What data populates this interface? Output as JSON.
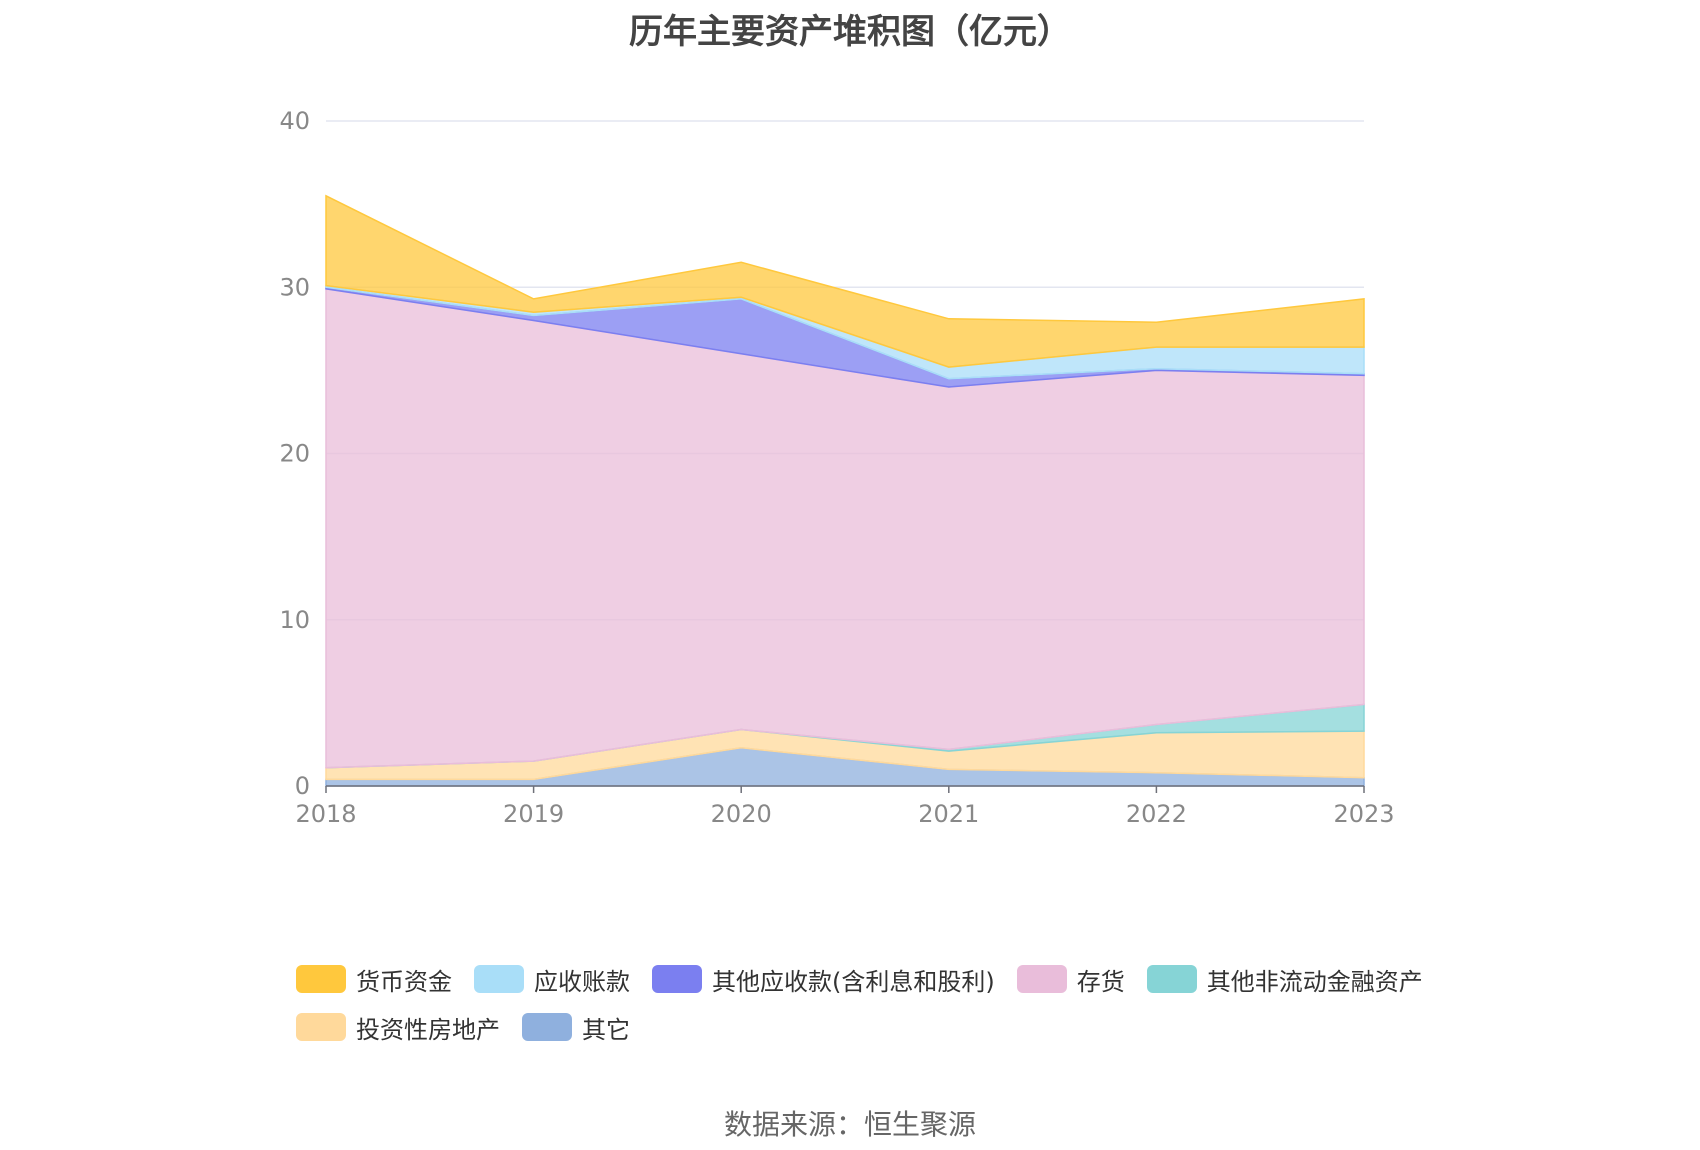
{
  "chart_data": {
    "type": "area",
    "stacked": true,
    "title": "历年主要资产堆积图（亿元）",
    "x": [
      "2018",
      "2019",
      "2020",
      "2021",
      "2022",
      "2023"
    ],
    "ylim": [
      0,
      40
    ],
    "yticks": [
      "0",
      "10",
      "20",
      "30",
      "40"
    ],
    "grid": true,
    "legend_position": "bottom",
    "series": [
      {
        "name": "其它",
        "color": "#8fb0de",
        "values": [
          0.4,
          0.4,
          2.3,
          1.0,
          0.8,
          0.5
        ]
      },
      {
        "name": "投资性房地产",
        "color": "#ffd99b",
        "values": [
          0.7,
          1.1,
          1.1,
          1.1,
          2.4,
          2.8
        ]
      },
      {
        "name": "其他非流动金融资产",
        "color": "#86d4d6",
        "values": [
          0.0,
          0.0,
          0.0,
          0.1,
          0.5,
          1.6
        ]
      },
      {
        "name": "存货",
        "color": "#e9bdda",
        "values": [
          28.8,
          26.5,
          22.6,
          21.8,
          21.3,
          19.8
        ]
      },
      {
        "name": "其他应收款(含利息和股利)",
        "color": "#7b7ff0",
        "values": [
          0.1,
          0.3,
          3.3,
          0.5,
          0.1,
          0.1
        ]
      },
      {
        "name": "应收账款",
        "color": "#a9def8",
        "values": [
          0.1,
          0.2,
          0.1,
          0.7,
          1.3,
          1.6
        ]
      },
      {
        "name": "货币资金",
        "color": "#ffc83d",
        "values": [
          5.4,
          0.8,
          2.1,
          2.9,
          1.5,
          2.9
        ]
      }
    ]
  },
  "legend_order": [
    "货币资金",
    "应收账款",
    "其他应收款(含利息和股利)",
    "存货",
    "其他非流动金融资产",
    "投资性房地产",
    "其它"
  ],
  "source": "数据来源：恒生聚源"
}
